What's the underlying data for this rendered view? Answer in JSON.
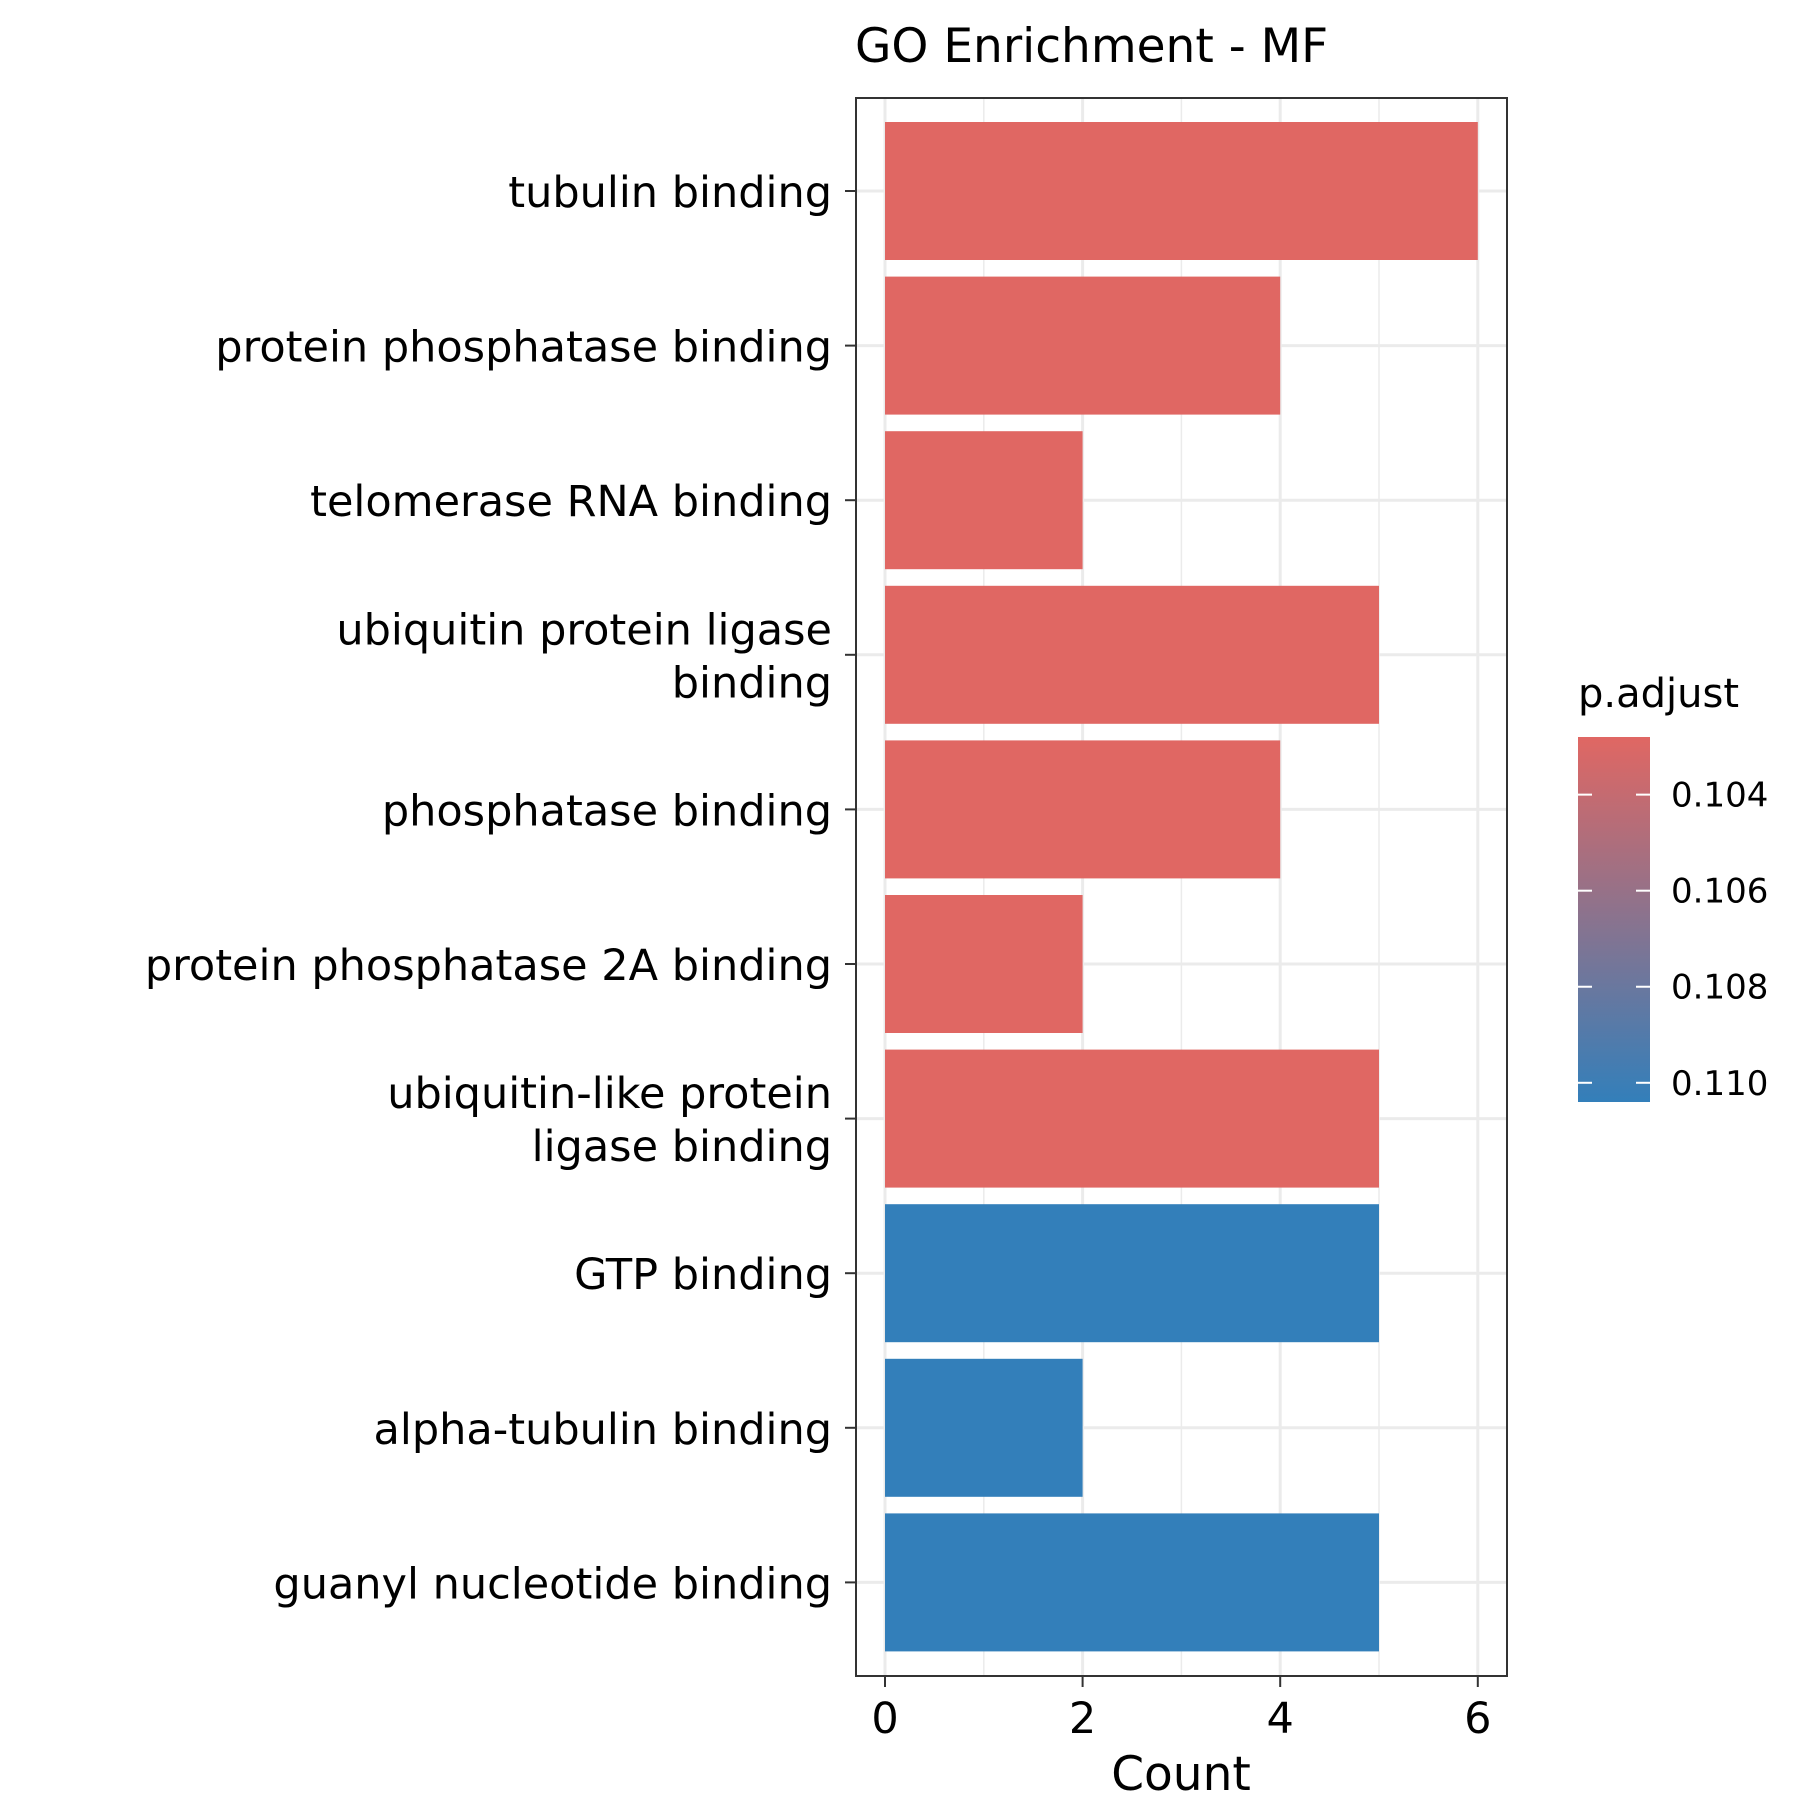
{
  "chart_data": {
    "type": "bar",
    "orientation": "horizontal",
    "title": "GO Enrichment - MF",
    "xlabel": "Count",
    "ylabel": "",
    "xlim": [
      0,
      6
    ],
    "x_ticks": [
      "0",
      "2",
      "4",
      "6"
    ],
    "grid": true,
    "categories": [
      [
        "tubulin binding"
      ],
      [
        "protein phosphatase binding"
      ],
      [
        "telomerase RNA binding"
      ],
      [
        "ubiquitin protein ligase",
        "binding"
      ],
      [
        "phosphatase binding"
      ],
      [
        "protein phosphatase 2A binding"
      ],
      [
        "ubiquitin-like protein",
        "ligase binding"
      ],
      [
        "GTP binding"
      ],
      [
        "alpha-tubulin binding"
      ],
      [
        "guanyl nucleotide binding"
      ]
    ],
    "values": [
      6,
      4,
      2,
      5,
      4,
      2,
      5,
      5,
      2,
      5
    ],
    "p_adjust": [
      0.1028,
      0.1028,
      0.1028,
      0.1028,
      0.1028,
      0.1028,
      0.1028,
      0.1104,
      0.1104,
      0.1104
    ],
    "legend": {
      "title": "p.adjust",
      "position": "right",
      "ticks": [
        "0.104",
        "0.106",
        "0.108",
        "0.110"
      ],
      "tick_values": [
        0.104,
        0.106,
        0.108,
        0.11
      ],
      "range": [
        0.1028,
        0.1104
      ],
      "low_color": "#E06763",
      "high_color": "#337FBA"
    },
    "colors": {
      "low": "#E06763",
      "high": "#337FBA",
      "grid": "#EBEBEB",
      "border": "#333333"
    }
  }
}
